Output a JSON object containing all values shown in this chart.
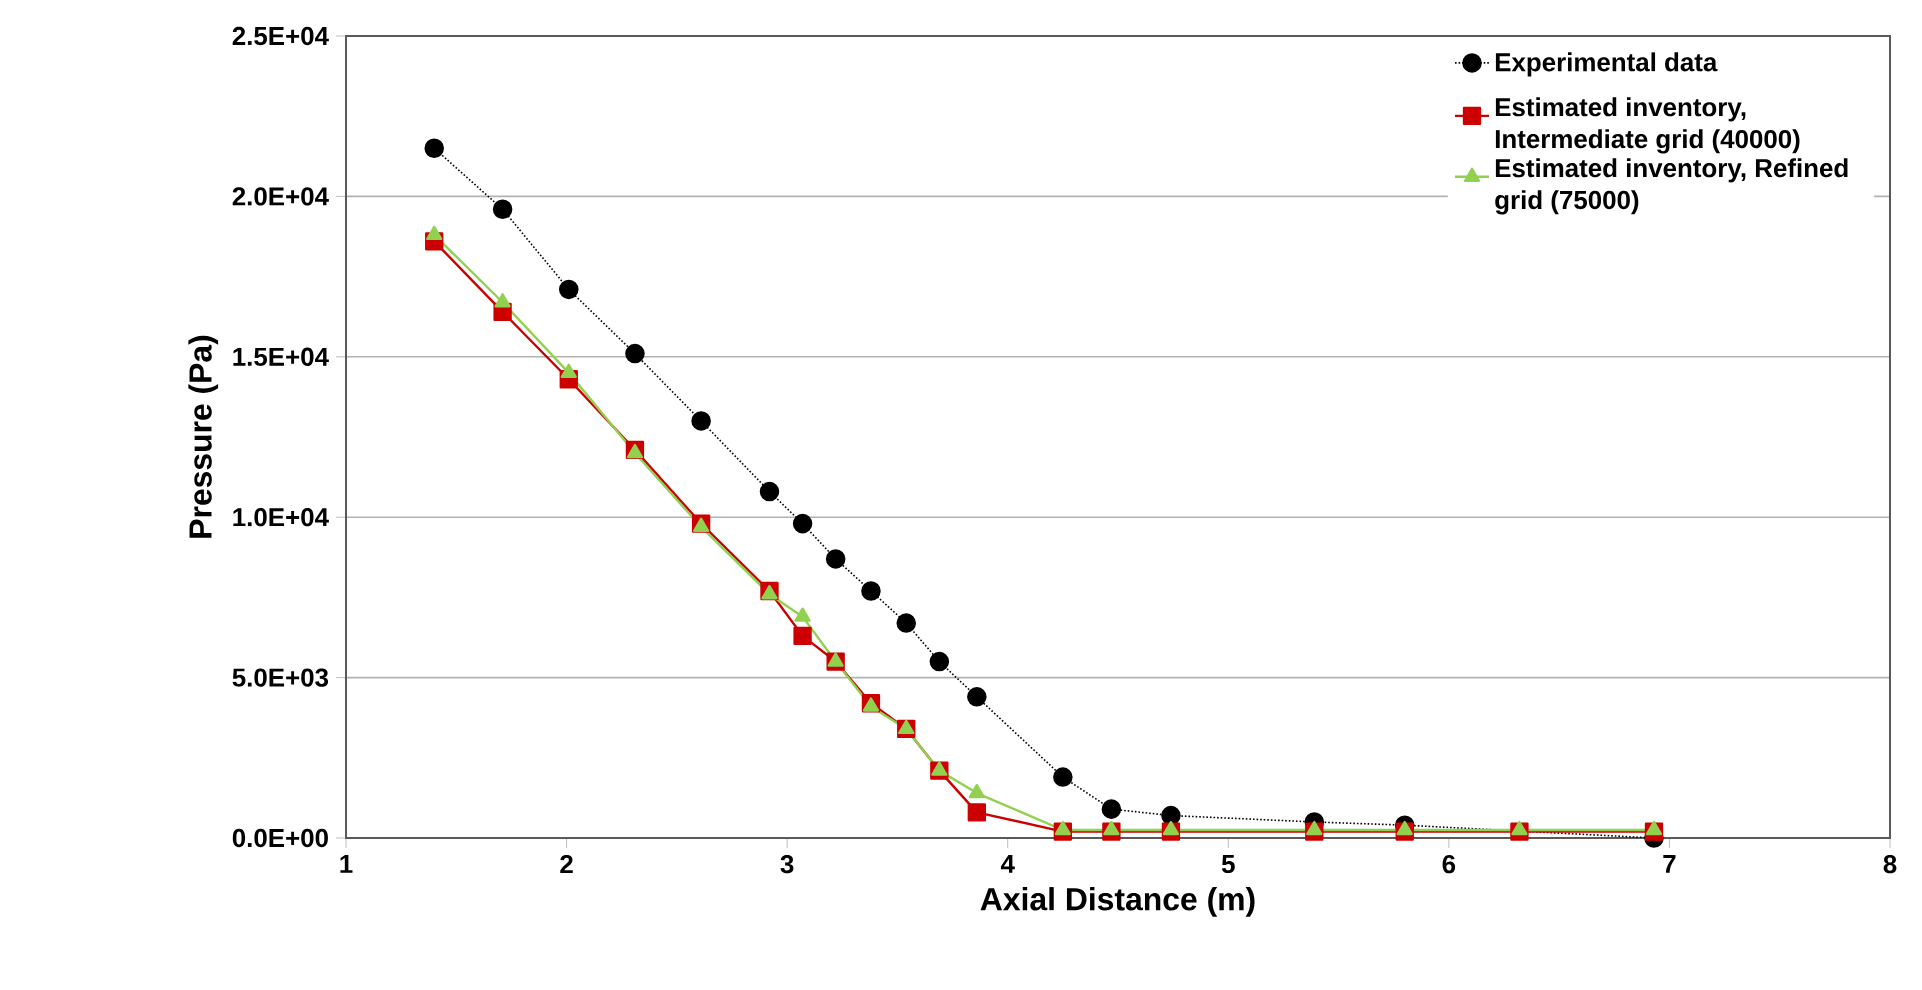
{
  "chart_data": {
    "type": "line",
    "xlabel": "Axial Distance (m)",
    "ylabel": "Pressure (Pa)",
    "xlim": [
      1,
      8
    ],
    "xticks": [
      1,
      2,
      3,
      4,
      5,
      6,
      7,
      8
    ],
    "ylim": [
      0,
      25000
    ],
    "yticks": [
      {
        "value": 0,
        "label": "0.0E+00"
      },
      {
        "value": 5000,
        "label": "5.0E+03"
      },
      {
        "value": 10000,
        "label": "1.0E+04"
      },
      {
        "value": 15000,
        "label": "1.5E+04"
      },
      {
        "value": 20000,
        "label": "2.0E+04"
      },
      {
        "value": 25000,
        "label": "2.5E+04"
      }
    ],
    "grid": "y",
    "legend": "top right",
    "series": [
      {
        "name": "Experimental data",
        "color": "#000000",
        "marker": "circle",
        "line_style": "dotted",
        "x": [
          1.4,
          1.71,
          2.01,
          2.31,
          2.61,
          2.92,
          3.07,
          3.22,
          3.38,
          3.54,
          3.69,
          3.86,
          4.25,
          4.47,
          4.74,
          5.39,
          5.8,
          6.93
        ],
        "values": [
          21500,
          19600,
          17100,
          15100,
          13000,
          10800,
          9800,
          8700,
          7700,
          6700,
          5500,
          4400,
          1900,
          900,
          700,
          500,
          400,
          0
        ]
      },
      {
        "name": "Estimated inventory, Intermediate grid (40000)",
        "color": "#cc0000",
        "marker": "square",
        "line_style": "solid",
        "x": [
          1.4,
          1.71,
          2.01,
          2.31,
          2.61,
          2.92,
          3.07,
          3.22,
          3.38,
          3.54,
          3.69,
          3.86,
          4.25,
          4.47,
          4.74,
          5.39,
          5.8,
          6.32,
          6.93
        ],
        "values": [
          18600,
          16400,
          14300,
          12100,
          9800,
          7700,
          6300,
          5500,
          4200,
          3400,
          2100,
          800,
          200,
          200,
          200,
          200,
          200,
          200,
          200
        ]
      },
      {
        "name": "Estimated inventory, Refined grid (75000)",
        "color": "#92d050",
        "marker": "triangle",
        "line_style": "solid",
        "x": [
          1.4,
          1.71,
          2.01,
          2.31,
          2.61,
          2.92,
          3.07,
          3.22,
          3.38,
          3.54,
          3.69,
          3.86,
          4.25,
          4.47,
          4.74,
          5.39,
          5.8,
          6.32,
          6.93
        ],
        "values": [
          18800,
          16700,
          14500,
          12000,
          9700,
          7600,
          6900,
          5500,
          4100,
          3400,
          2100,
          1400,
          250,
          250,
          250,
          250,
          250,
          250,
          250
        ]
      }
    ]
  }
}
